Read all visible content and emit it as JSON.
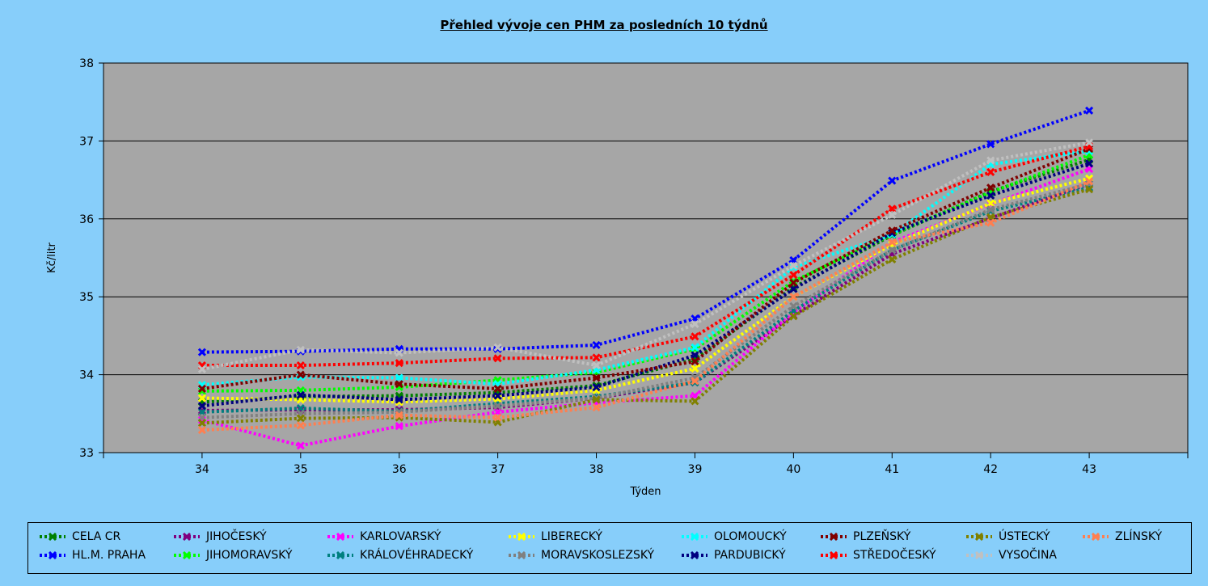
{
  "chart_data": {
    "type": "line",
    "title": "Přehled vývoje cen PHM  za posledních 10 týdnů",
    "xlabel": "Týden",
    "ylabel": "Kč/litr",
    "x": [
      34,
      35,
      36,
      37,
      38,
      39,
      40,
      41,
      42,
      43
    ],
    "ylim": [
      33,
      38
    ],
    "yticks": [
      33,
      34,
      35,
      36,
      37,
      38
    ],
    "grid": true,
    "legend_position": "bottom",
    "series": [
      {
        "name": "CELA CR",
        "color": "#008000",
        "values": [
          33.65,
          33.72,
          33.73,
          33.77,
          33.86,
          34.2,
          35.12,
          35.79,
          36.35,
          36.76
        ]
      },
      {
        "name": "HL.M. PRAHA",
        "color": "#0000ff",
        "values": [
          34.29,
          34.3,
          34.33,
          34.33,
          34.38,
          34.72,
          35.47,
          36.49,
          36.96,
          37.39
        ]
      },
      {
        "name": "JIHOČESKÝ",
        "color": "#800080",
        "values": [
          33.54,
          33.55,
          33.55,
          33.58,
          33.7,
          33.9,
          34.76,
          35.55,
          36.01,
          36.45
        ]
      },
      {
        "name": "JIHOMORAVSKÝ",
        "color": "#00ff00",
        "values": [
          33.79,
          33.8,
          33.84,
          33.93,
          34.03,
          34.33,
          35.2,
          35.8,
          36.34,
          36.82
        ]
      },
      {
        "name": "KARLOVARSKÝ",
        "color": "#ff00ff",
        "values": [
          33.42,
          33.09,
          33.34,
          33.52,
          33.64,
          33.73,
          34.8,
          35.7,
          36.19,
          36.64
        ]
      },
      {
        "name": "KRÁLOVÉHRADECKÝ",
        "color": "#008080",
        "values": [
          33.52,
          33.57,
          33.53,
          33.63,
          33.72,
          33.9,
          34.82,
          35.6,
          36.1,
          36.4
        ]
      },
      {
        "name": "LIBERECKÝ",
        "color": "#ffff00",
        "values": [
          33.7,
          33.68,
          33.65,
          33.69,
          33.8,
          34.08,
          35.0,
          35.67,
          36.2,
          36.52
        ]
      },
      {
        "name": "MORAVSKOSLEZSKÝ",
        "color": "#808080",
        "values": [
          33.45,
          33.5,
          33.52,
          33.6,
          33.7,
          33.96,
          34.88,
          35.6,
          36.12,
          36.45
        ]
      },
      {
        "name": "OLOMOUCKÝ",
        "color": "#00ffff",
        "values": [
          33.87,
          33.97,
          33.96,
          33.88,
          34.06,
          34.35,
          35.38,
          35.8,
          36.7,
          36.87
        ]
      },
      {
        "name": "PARDUBICKÝ",
        "color": "#000080",
        "values": [
          33.6,
          33.74,
          33.68,
          33.73,
          33.84,
          34.25,
          35.1,
          35.82,
          36.3,
          36.71
        ]
      },
      {
        "name": "PLZEŇSKÝ",
        "color": "#800000",
        "values": [
          33.82,
          34.0,
          33.88,
          33.82,
          33.96,
          34.17,
          35.18,
          35.85,
          36.4,
          36.9
        ]
      },
      {
        "name": "STŘEDOČESKÝ",
        "color": "#ff0000",
        "values": [
          34.12,
          34.12,
          34.15,
          34.21,
          34.22,
          34.49,
          35.28,
          36.13,
          36.6,
          36.93
        ]
      },
      {
        "name": "ÚSTECKÝ",
        "color": "#808000",
        "values": [
          33.38,
          33.44,
          33.45,
          33.39,
          33.68,
          33.66,
          34.75,
          35.48,
          36.02,
          36.38
        ]
      },
      {
        "name": "VYSOČINA",
        "color": "#c0c0c0",
        "values": [
          34.07,
          34.32,
          34.28,
          34.35,
          34.12,
          34.65,
          35.4,
          36.05,
          36.75,
          36.98
        ]
      },
      {
        "name": "ZLÍNSKÝ",
        "color": "#ff7f50",
        "values": [
          33.29,
          33.35,
          33.48,
          33.45,
          33.58,
          33.92,
          35.0,
          35.7,
          35.95,
          36.48
        ]
      }
    ]
  }
}
